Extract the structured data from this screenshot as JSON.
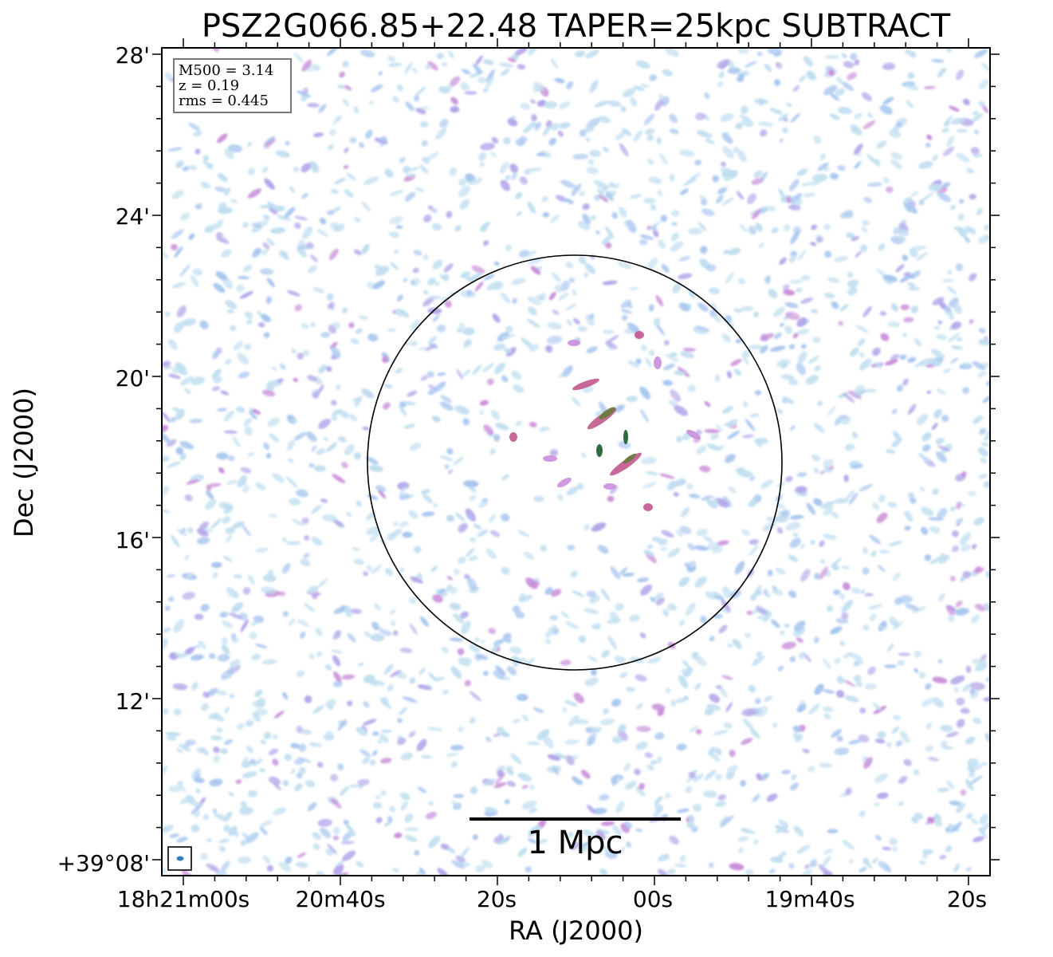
{
  "chart_data": {
    "type": "heatmap",
    "title": "PSZ2G066.85+22.48 TAPER=25kpc SUBTRACT",
    "xlabel": "RA (J2000)",
    "ylabel": "Dec (J2000)",
    "x_ticks": [
      "18h21m00s",
      "20m40s",
      "20s",
      "00s",
      "19m40s",
      "20s"
    ],
    "y_ticks": [
      "28'",
      "24'",
      "20'",
      "16'",
      "12'",
      "+39°08'"
    ],
    "xlim": [
      "18h21m03s",
      "18h19m18s"
    ],
    "ylim": [
      "+39°07.7'",
      "+39°28.2'"
    ],
    "annotations": {
      "M500": "M500 = 3.14",
      "z": "z = 0.19",
      "rms": "rms = 0.445"
    },
    "scale_bar": "1 Mpc",
    "circle": {
      "shape": "circle",
      "ra_center": "18h20m10s",
      "dec_center": "+39°17.9'",
      "radius_arcmin": 5.1,
      "color": "#000000"
    },
    "beam": "ellipse bottom-left",
    "colormap": [
      "#c2dff0",
      "#a9c7ef",
      "#b4a7ea",
      "#c98fd9",
      "#c1598d",
      "#6b7a3c",
      "#1a5a2a"
    ],
    "grid": false
  }
}
